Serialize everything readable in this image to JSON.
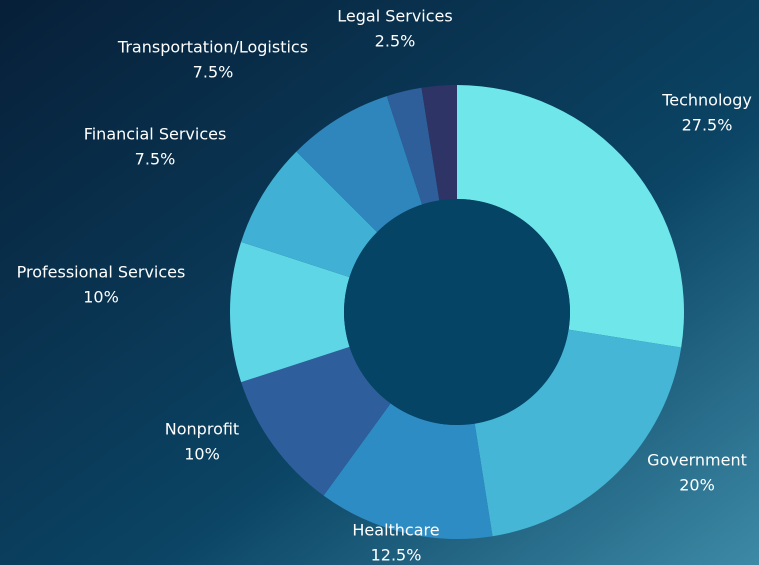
{
  "chart_data": {
    "type": "donut",
    "categories": [
      "Technology",
      "Government",
      "Healthcare",
      "Nonprofit",
      "Professional Services",
      "Financial Services",
      "Transportation/Logistics",
      "Legal Services",
      null
    ],
    "values": [
      27.5,
      20,
      12.5,
      10,
      10,
      7.5,
      7.5,
      2.5,
      2.5
    ],
    "value_labels": [
      "27.5%",
      "20%",
      "12.5%",
      "10%",
      "10%",
      "7.5%",
      "7.5%",
      "2.5%",
      null
    ],
    "colors": [
      "#6ee6ea",
      "#45b6d6",
      "#2e8cc4",
      "#2e5f9c",
      "#5fd6e6",
      "#40b0d4",
      "#2e86bc",
      "#2e5f9a",
      "#2e3566"
    ]
  }
}
